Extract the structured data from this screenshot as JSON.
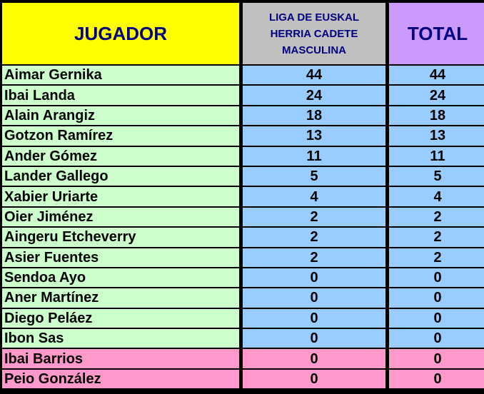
{
  "headers": {
    "player": "JUGADOR",
    "league": "LIGA DE EUSKAL HERRIA CADETE MASCULINA",
    "total": "TOTAL"
  },
  "colors": {
    "player_header": "#ffff00",
    "league_header": "#c0c0c0",
    "total_header": "#cc99ff",
    "name_cell": "#ccffcc",
    "name_cell_highlight": "#ff99cc",
    "value_cell": "#99ccff",
    "grid_lines": "#000000"
  },
  "rows": [
    {
      "name": "Aimar Gernika",
      "league": "44",
      "total": "44",
      "highlight": false
    },
    {
      "name": "Ibai Landa",
      "league": "24",
      "total": "24",
      "highlight": false
    },
    {
      "name": "Alain Arangiz",
      "league": "18",
      "total": "18",
      "highlight": false
    },
    {
      "name": "Gotzon Ramírez",
      "league": "13",
      "total": "13",
      "highlight": false
    },
    {
      "name": "Ander Gómez",
      "league": "11",
      "total": "11",
      "highlight": false
    },
    {
      "name": "Lander Gallego",
      "league": "5",
      "total": "5",
      "highlight": false
    },
    {
      "name": "Xabier Uriarte",
      "league": "4",
      "total": "4",
      "highlight": false
    },
    {
      "name": "Oier Jiménez",
      "league": "2",
      "total": "2",
      "highlight": false
    },
    {
      "name": "Aingeru Etcheverry",
      "league": "2",
      "total": "2",
      "highlight": false
    },
    {
      "name": "Asier Fuentes",
      "league": "2",
      "total": "2",
      "highlight": false
    },
    {
      "name": "Sendoa Ayo",
      "league": "0",
      "total": "0",
      "highlight": false
    },
    {
      "name": "Aner Martínez",
      "league": "0",
      "total": "0",
      "highlight": false
    },
    {
      "name": "Diego Peláez",
      "league": "0",
      "total": "0",
      "highlight": false
    },
    {
      "name": "Ibon Sas",
      "league": "0",
      "total": "0",
      "highlight": false
    },
    {
      "name": "Ibai Barrios",
      "league": "0",
      "total": "0",
      "highlight": true
    },
    {
      "name": "Peio González",
      "league": "0",
      "total": "0",
      "highlight": true
    }
  ]
}
